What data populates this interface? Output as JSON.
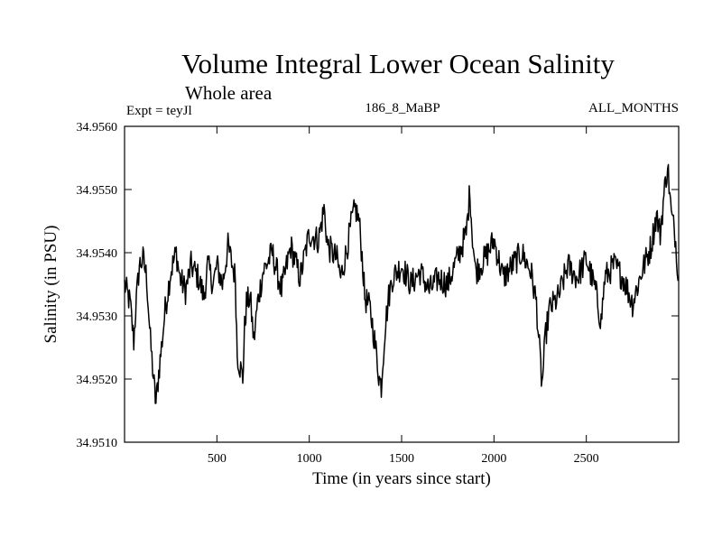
{
  "chart_data": {
    "type": "line",
    "title": "Volume Integral Lower Ocean Salinity",
    "subtitle": "Whole area",
    "experiment": "Expt = teyJl",
    "run_label": "186_8_MaBP",
    "period": "ALL_MONTHS",
    "xlabel": "Time (in years since start)",
    "ylabel": "Salinity (in PSU)",
    "xlim": [
      0,
      3000
    ],
    "ylim": [
      34.951,
      34.956
    ],
    "xticks": [
      500,
      1000,
      1500,
      2000,
      2500
    ],
    "xtick_labels": [
      "500",
      "1000",
      "1500",
      "2000",
      "2500"
    ],
    "yticks": [
      34.951,
      34.952,
      34.953,
      34.954,
      34.955,
      34.956
    ],
    "ytick_labels": [
      "34.9510",
      "34.9520",
      "34.9530",
      "34.9540",
      "34.9550",
      "34.9560"
    ],
    "grid": false,
    "series": [
      {
        "name": "Salinity",
        "color": "#000000",
        "x": [
          0,
          30,
          50,
          60,
          80,
          100,
          120,
          140,
          160,
          170,
          185,
          200,
          220,
          250,
          280,
          300,
          330,
          360,
          400,
          430,
          450,
          480,
          500,
          530,
          560,
          600,
          610,
          640,
          650,
          660,
          680,
          700,
          720,
          750,
          800,
          850,
          900,
          950,
          1000,
          1050,
          1080,
          1100,
          1150,
          1170,
          1200,
          1230,
          1250,
          1270,
          1290,
          1300,
          1330,
          1350,
          1380,
          1390,
          1410,
          1430,
          1450,
          1500,
          1550,
          1600,
          1650,
          1700,
          1750,
          1800,
          1850,
          1870,
          1880,
          1900,
          1950,
          2000,
          2050,
          2100,
          2150,
          2200,
          2230,
          2250,
          2260,
          2280,
          2300,
          2350,
          2400,
          2450,
          2500,
          2550,
          2580,
          2600,
          2650,
          2700,
          2750,
          2800,
          2850,
          2880,
          2900,
          2920,
          2940,
          2960,
          2980,
          3000
        ],
        "values": [
          34.9535,
          34.9532,
          34.9526,
          34.9531,
          34.9538,
          34.9539,
          34.9536,
          34.9526,
          34.9519,
          34.9516,
          34.9521,
          34.9525,
          34.9531,
          34.9537,
          34.954,
          34.9536,
          34.9534,
          34.9538,
          34.9536,
          34.9533,
          34.9538,
          34.9535,
          34.9538,
          34.9535,
          34.9541,
          34.9536,
          34.9524,
          34.952,
          34.9528,
          34.9532,
          34.9533,
          34.9526,
          34.9532,
          34.9537,
          34.954,
          34.9534,
          34.9541,
          34.9536,
          34.9543,
          34.9542,
          34.9547,
          34.9541,
          34.9539,
          34.9536,
          34.954,
          34.9545,
          34.9547,
          34.9545,
          34.9538,
          34.9533,
          34.9531,
          34.9527,
          34.952,
          34.9519,
          34.9528,
          34.9533,
          34.9536,
          34.9538,
          34.9535,
          34.9537,
          34.9534,
          34.9536,
          34.9535,
          34.9539,
          34.9543,
          34.955,
          34.9544,
          34.9537,
          34.9539,
          34.9542,
          34.9536,
          34.9538,
          34.954,
          34.9537,
          34.9532,
          34.9523,
          34.9519,
          34.9527,
          34.9531,
          34.9533,
          34.9538,
          34.9536,
          34.9539,
          34.9534,
          34.9529,
          34.9536,
          34.9538,
          34.9536,
          34.9532,
          34.9537,
          34.9541,
          34.9546,
          34.9543,
          34.9549,
          34.9554,
          34.9546,
          34.9543,
          34.9536
        ]
      }
    ]
  }
}
